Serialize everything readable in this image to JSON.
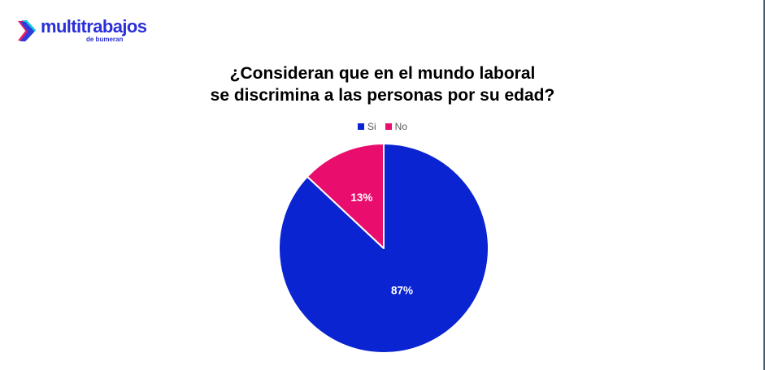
{
  "window": {
    "background": "#ffffff",
    "right_edge_color": "#4a5b6c"
  },
  "logo": {
    "brand": "multitrabajos",
    "tagline": "de bumeran",
    "text_color": "#2b2fd6",
    "icon_colors": {
      "blue": "#2e3cdb",
      "pink": "#ed1a68",
      "teal": "#10c8d8"
    }
  },
  "chart_data": {
    "type": "pie",
    "title": "¿Consideran que en el mundo laboral se discrimina a las personas por su edad?",
    "title_lines": [
      "¿Consideran que en el mundo laboral",
      "se discrimina a las personas por su edad?"
    ],
    "title_color": "#000000",
    "legend_position": "top",
    "legend_text_color": "#595959",
    "series": [
      {
        "name": "Si",
        "value": 87,
        "percent_label": "87%",
        "color": "#0b24d1"
      },
      {
        "name": "No",
        "value": 13,
        "percent_label": "13%",
        "color": "#e90d6d"
      }
    ],
    "start_angle_deg": 0,
    "direction": "clockwise",
    "radius_px": 129,
    "slice_separator_color": "#ffffff",
    "data_label_color": "#ffffff"
  }
}
